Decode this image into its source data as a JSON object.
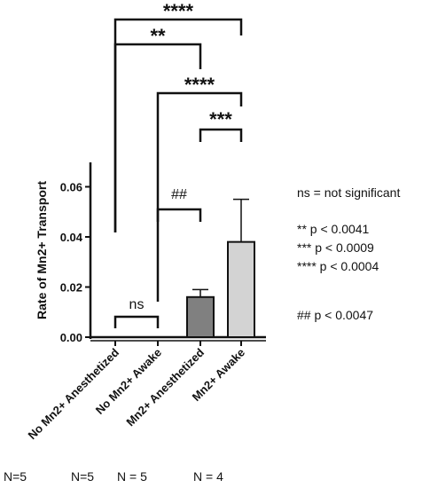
{
  "chart_data": {
    "type": "bar",
    "categories": [
      "No Mn2+ Anesthetized",
      "No Mn2+ Awake",
      "Mn2+ Anesthetized",
      "Mn2+ Awake"
    ],
    "values": [
      0.0,
      0.0,
      0.016,
      0.038
    ],
    "errors": [
      0.0,
      0.0,
      0.003,
      0.017
    ],
    "bar_colors": [
      "#ffffff",
      "#ffffff",
      "#808080",
      "#d3d3d3"
    ],
    "ylabel": "Rate of Mn2+ Transport",
    "ylim": [
      0,
      0.07
    ],
    "yticks": [
      0.0,
      0.02,
      0.04,
      0.06
    ],
    "ytick_labels": [
      "0.00",
      "0.02",
      "0.04",
      "0.06"
    ],
    "grid": false,
    "sample_sizes": [
      "N=5",
      "N=5",
      "N = 5",
      "N = 4"
    ],
    "comparisons": [
      {
        "from": 0,
        "to": 3,
        "label": "****"
      },
      {
        "from": 0,
        "to": 2,
        "label": "**"
      },
      {
        "from": 1,
        "to": 3,
        "label": "****"
      },
      {
        "from": 2,
        "to": 3,
        "label": "***"
      },
      {
        "from": 1,
        "to": 2,
        "label": "##"
      },
      {
        "from": 0,
        "to": 1,
        "label": "ns"
      }
    ],
    "annotations": [
      "ns = not significant",
      "** p < 0.0041",
      "*** p < 0.0009",
      "**** p < 0.0004",
      "## p < 0.0047"
    ]
  }
}
